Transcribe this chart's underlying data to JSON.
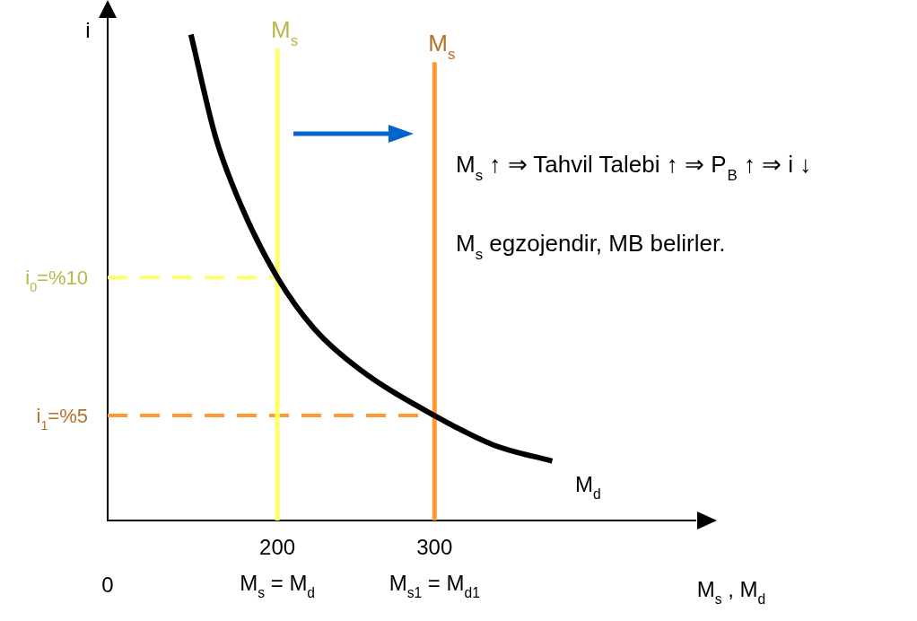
{
  "chart_data": {
    "type": "line",
    "xlabel": "M$_{s}$ , M$_{d}$",
    "ylabel": "i",
    "xlim": [
      92,
      466
    ],
    "ylim": [
      1.2,
      19.4
    ],
    "xticks": [
      {
        "value": 200,
        "label": "200"
      },
      {
        "value": 300,
        "label": "300"
      }
    ],
    "yticks": [
      {
        "value": 10,
        "label": "%10"
      },
      {
        "value": 5,
        "label": "%5"
      }
    ],
    "grid": false,
    "legend": false,
    "marker": "none",
    "series": [
      {
        "name": "M$_{d}$",
        "color": "#000000",
        "x": [
          145,
          160.6,
          177.7,
          200,
          223.4,
          252,
          300,
          337.7,
          374.9
        ],
        "values": [
          18.8,
          15.1,
          12.5,
          10,
          8.15,
          6.69,
          5,
          3.93,
          3.35
        ]
      },
      {
        "name": "M$_{s}$",
        "color": "#ffff66",
        "x": [
          200,
          200
        ],
        "values": [
          1.2,
          18.3
        ]
      },
      {
        "name": "M$_{s}$",
        "color": "#ff9933",
        "x": [
          300,
          300
        ],
        "values": [
          1.2,
          17.8
        ]
      },
      {
        "color": "#ffff66",
        "line_style": "dashed",
        "x": [
          92,
          200
        ],
        "values": [
          10,
          10
        ]
      },
      {
        "color": "#ff9933",
        "line_style": "dashed",
        "x": [
          92,
          300
        ],
        "values": [
          5,
          5
        ]
      }
    ],
    "annotations": [
      "M$_{s}$ ↑ ⇒ Tahvil Talebi ↑ ⇒ P$_{B}$ ↑ ⇒ i ↓",
      "M$_{s}$ egzojendir, MB belirler.",
      "M$_{s}$ = M$_{d}$",
      "M$_{s1}$ = M$_{d1}$",
      "0",
      "i$_{0}$=",
      "i$_{1}$="
    ]
  }
}
